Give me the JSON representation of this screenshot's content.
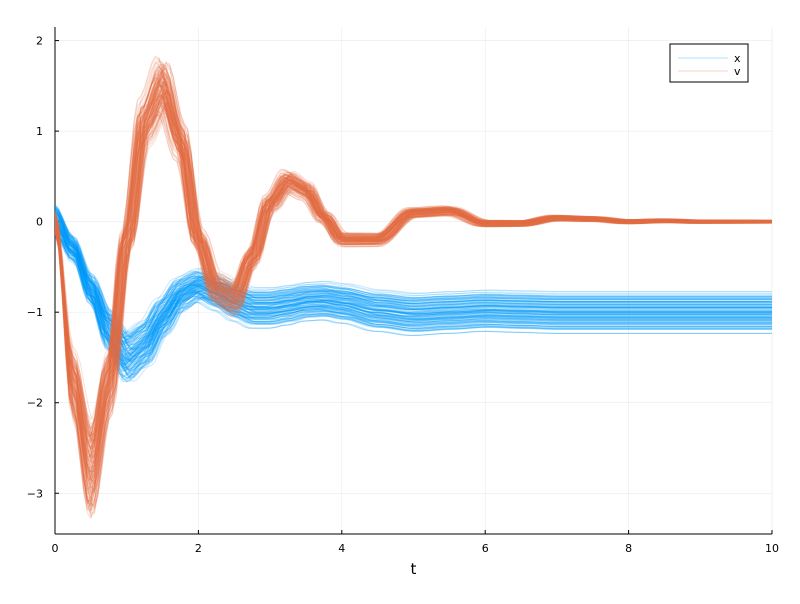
{
  "chart_data": {
    "type": "line",
    "title": "",
    "xlabel": "t",
    "ylabel": "",
    "xlim": [
      0,
      10
    ],
    "ylim": [
      -3.45,
      2.15
    ],
    "x_ticks": [
      0,
      2,
      4,
      6,
      8,
      10
    ],
    "y_ticks": [
      -3,
      -2,
      -1,
      0,
      1,
      2
    ],
    "grid": true,
    "legend_position": "top-right",
    "ensemble_note": "ensemble of many stochastic trajectories per series; values below are the representative mean path with approximate spread",
    "series": [
      {
        "name": "x",
        "color": "#009AFA",
        "x": [
          0,
          0.25,
          0.5,
          0.75,
          1.0,
          1.25,
          1.5,
          1.75,
          2.0,
          2.25,
          2.5,
          2.75,
          3.0,
          3.25,
          3.5,
          3.75,
          4.0,
          4.5,
          5.0,
          5.5,
          6.0,
          6.5,
          7.0,
          7.5,
          8.0,
          8.5,
          9.0,
          9.5,
          10.0
        ],
        "values": [
          0.0,
          -0.3,
          -0.75,
          -1.2,
          -1.5,
          -1.35,
          -1.05,
          -0.8,
          -0.7,
          -0.78,
          -0.88,
          -0.95,
          -0.95,
          -0.92,
          -0.88,
          -0.87,
          -0.9,
          -0.98,
          -1.02,
          -1.0,
          -0.98,
          -0.99,
          -1.0,
          -1.0,
          -1.0,
          -1.0,
          -1.0,
          -1.0,
          -1.0
        ],
        "spread": 0.12
      },
      {
        "name": "v",
        "color": "#E26F46",
        "x": [
          0,
          0.25,
          0.5,
          0.75,
          1.0,
          1.25,
          1.5,
          1.75,
          2.0,
          2.25,
          2.5,
          2.75,
          3.0,
          3.25,
          3.5,
          3.75,
          4.0,
          4.5,
          5.0,
          5.5,
          6.0,
          6.5,
          7.0,
          7.5,
          8.0,
          8.5,
          9.0,
          9.5,
          10.0
        ],
        "values": [
          0.0,
          -1.8,
          -2.75,
          -1.8,
          -0.2,
          1.1,
          1.5,
          0.9,
          -0.2,
          -0.75,
          -0.85,
          -0.4,
          0.2,
          0.45,
          0.35,
          0.05,
          -0.2,
          -0.2,
          0.1,
          0.12,
          -0.02,
          -0.02,
          0.04,
          0.03,
          0.0,
          0.01,
          0.0,
          0.0,
          0.0
        ],
        "spread": 0.15
      }
    ]
  }
}
